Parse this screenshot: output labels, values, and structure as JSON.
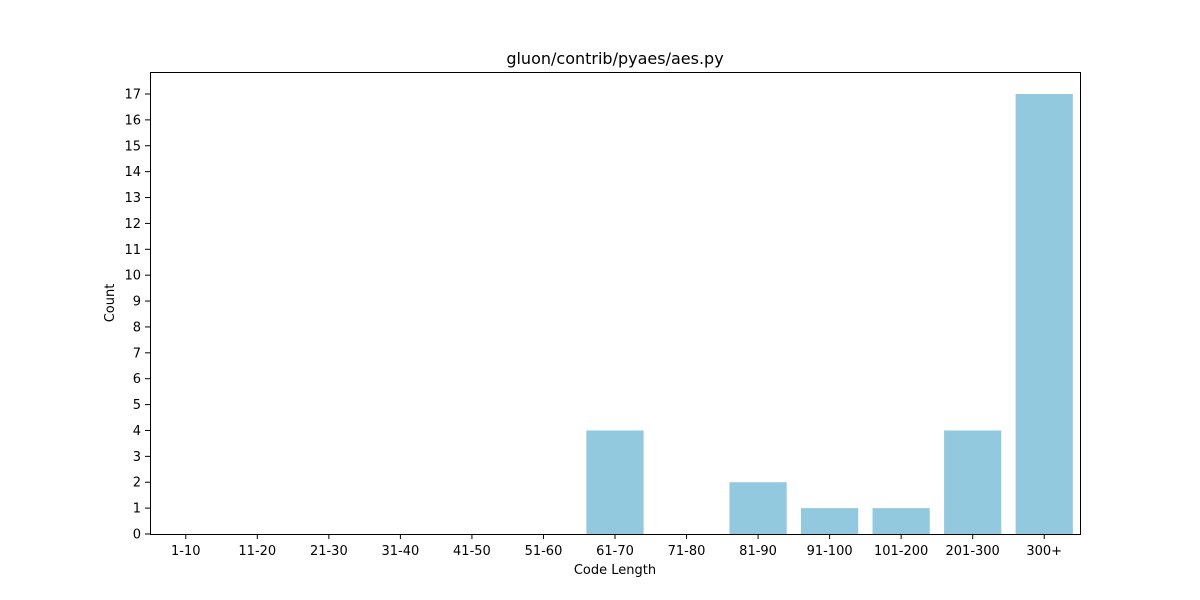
{
  "chart_data": {
    "type": "bar",
    "title": "gluon/contrib/pyaes/aes.py",
    "xlabel": "Code Length",
    "ylabel": "Count",
    "categories": [
      "1-10",
      "11-20",
      "21-30",
      "31-40",
      "41-50",
      "51-60",
      "61-70",
      "71-80",
      "81-90",
      "91-100",
      "101-200",
      "201-300",
      "300+"
    ],
    "values": [
      0,
      0,
      0,
      0,
      0,
      0,
      4,
      0,
      2,
      1,
      1,
      4,
      17
    ],
    "ylim": [
      0,
      17.85
    ],
    "yticks": [
      0,
      1,
      2,
      3,
      4,
      5,
      6,
      7,
      8,
      9,
      10,
      11,
      12,
      13,
      14,
      15,
      16,
      17
    ],
    "bar_color": "#92c9de",
    "grid": false,
    "legend": "none"
  }
}
